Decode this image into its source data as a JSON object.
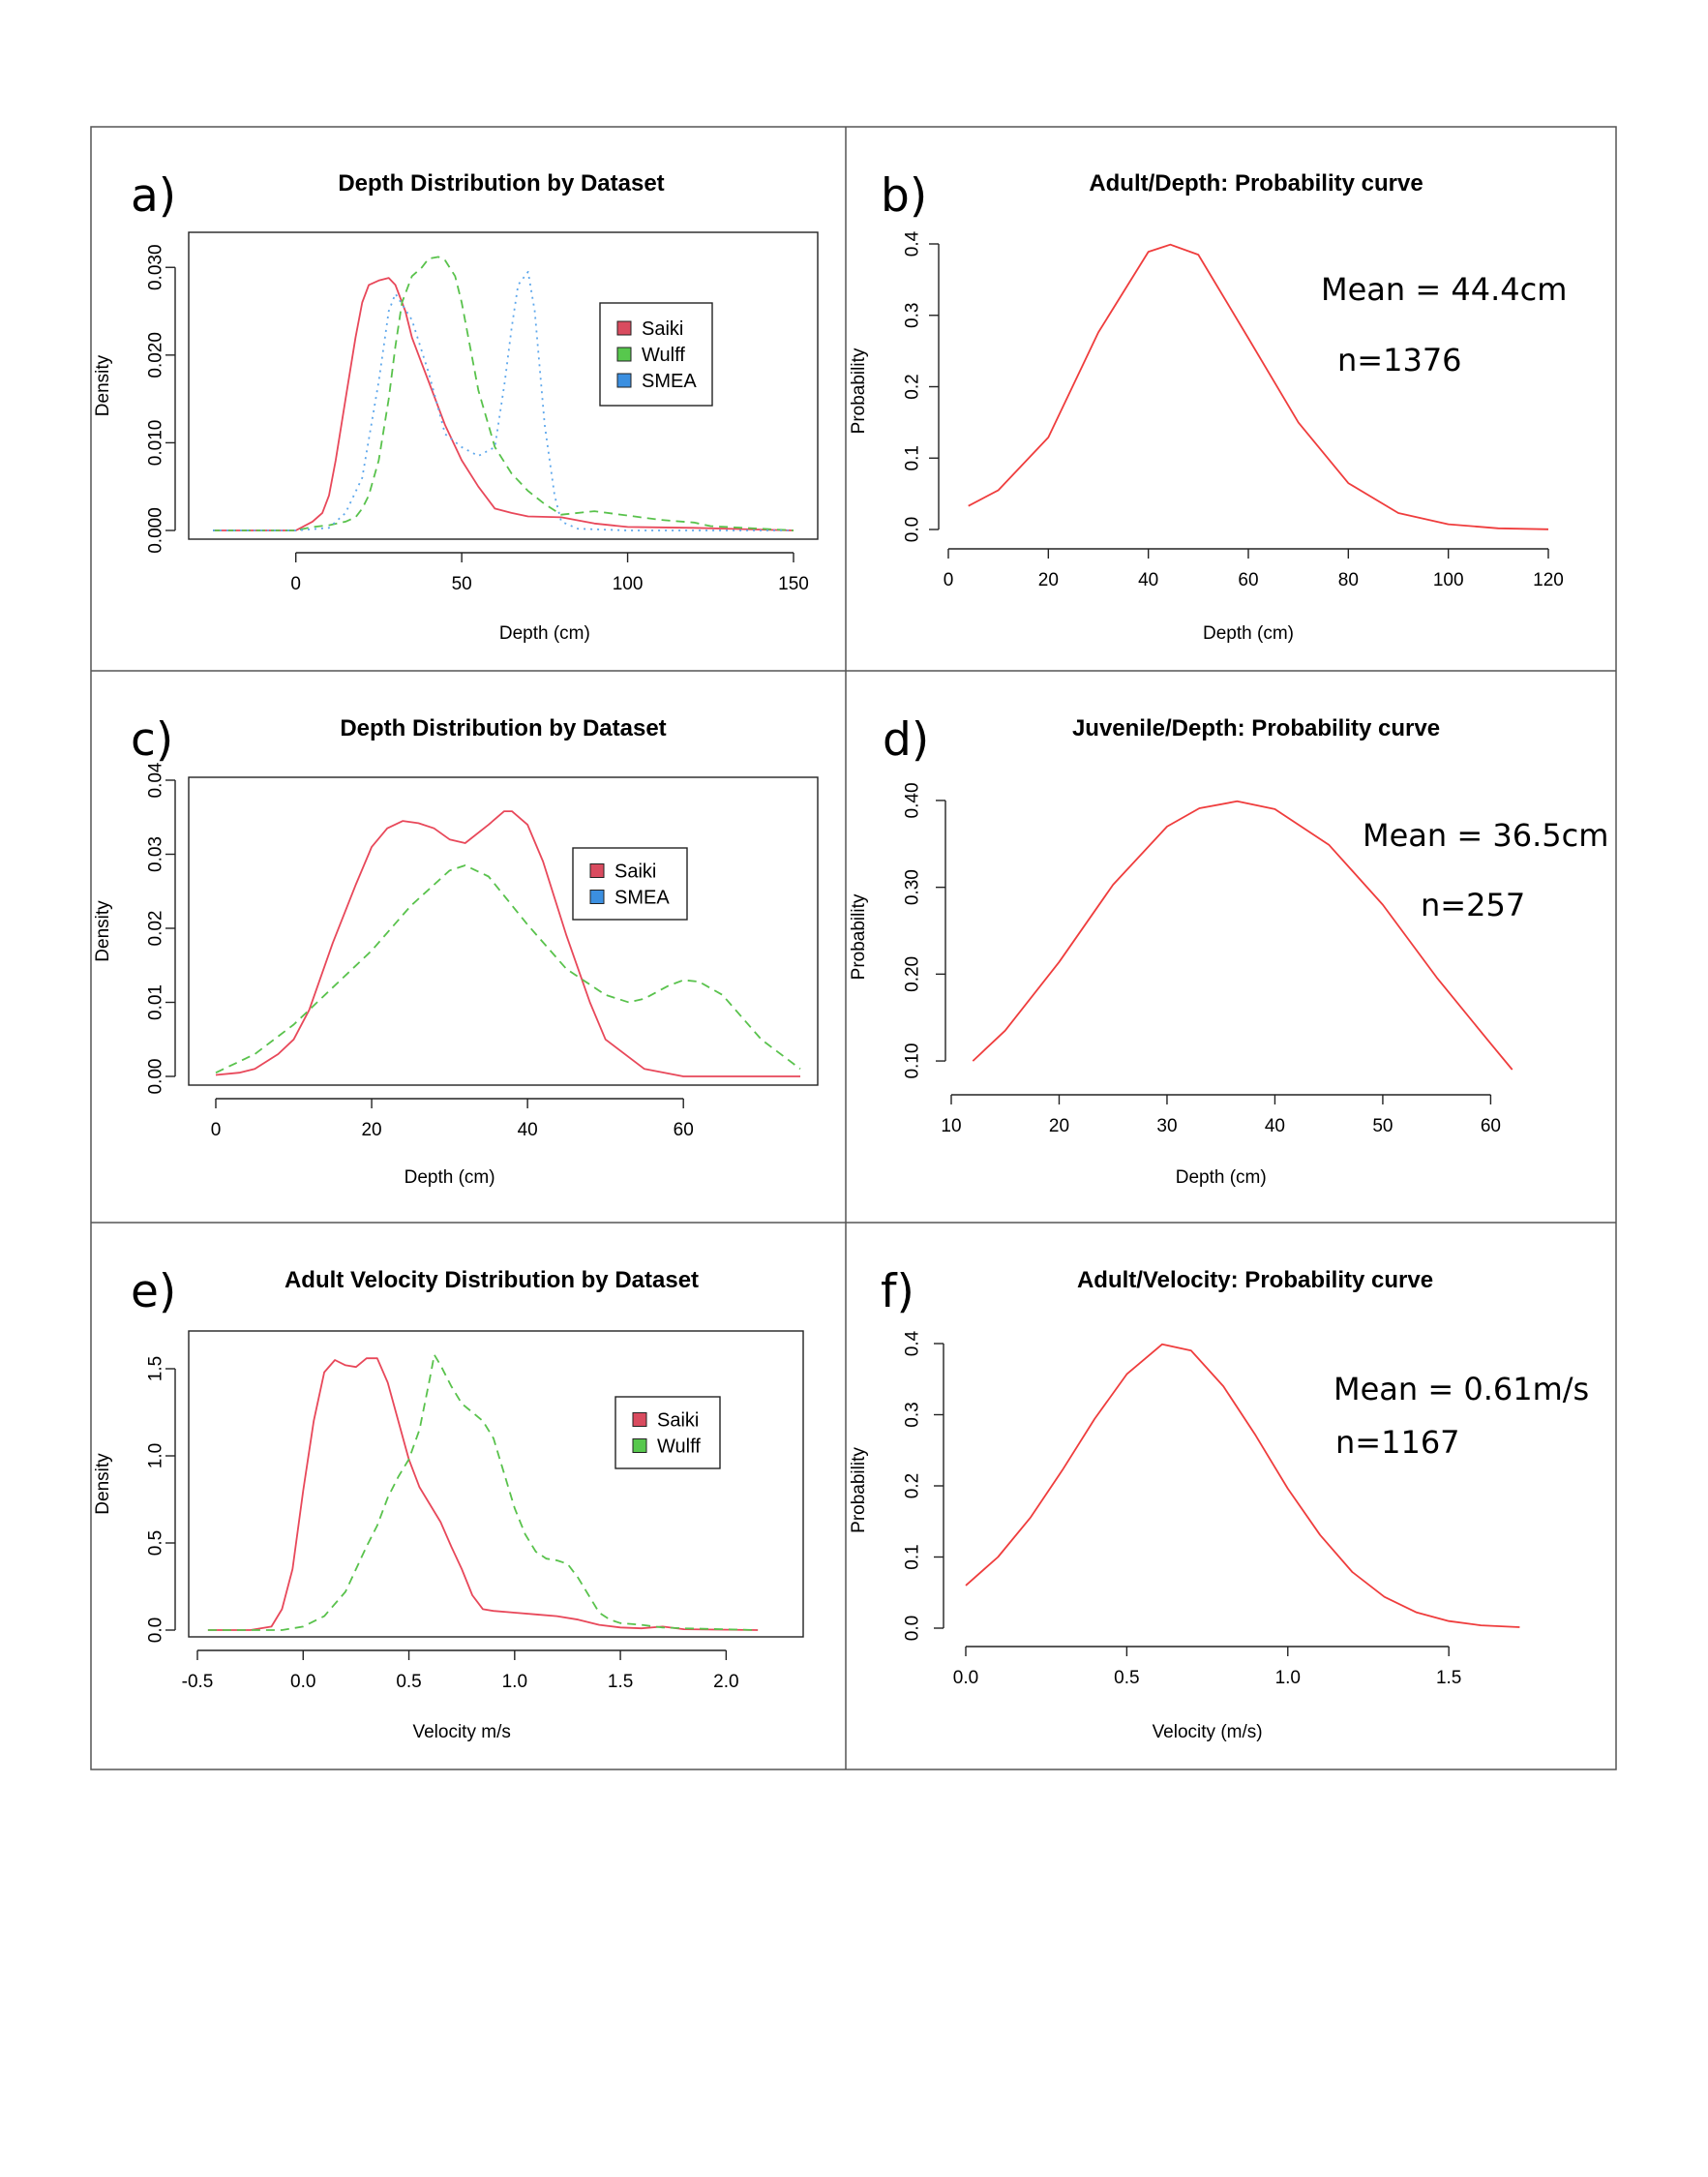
{
  "colors": {
    "saiki": "#e8485a",
    "wulff": "#59c24c",
    "smea": "#5fa8ec",
    "curve": "#ef3d3d",
    "legend_saiki": "#d94b5f",
    "legend_wulff": "#57c84d",
    "legend_smea": "#3b8fe0"
  },
  "panels": [
    {
      "letter": "a)",
      "title": "Depth Distribution by Dataset"
    },
    {
      "letter": "b)",
      "title": "Adult/Depth: Probability curve",
      "annotation_mean": "Mean = 44.4cm",
      "annotation_n": "n=1376"
    },
    {
      "letter": "c)",
      "title": "Depth Distribution by Dataset"
    },
    {
      "letter": "d)",
      "title": "Juvenile/Depth: Probability curve",
      "annotation_mean": "Mean = 36.5cm",
      "annotation_n": "n=257"
    },
    {
      "letter": "e)",
      "title": "Adult Velocity Distribution by Dataset"
    },
    {
      "letter": "f)",
      "title": "Adult/Velocity: Probability curve",
      "annotation_mean": "Mean = 0.61m/s",
      "annotation_n": "n=1167"
    }
  ],
  "chart_data": [
    {
      "type": "line",
      "title": "Depth Distribution by Dataset",
      "xlabel": "Depth (cm)",
      "ylabel": "Density",
      "xlim": [
        -25,
        150
      ],
      "ylim": [
        0,
        0.034
      ],
      "xticks": [
        0,
        50,
        100,
        150
      ],
      "yticks": [
        0.0,
        0.01,
        0.02,
        0.03
      ],
      "xtick_labels": [
        "0",
        "50",
        "100",
        "150"
      ],
      "ytick_labels": [
        "0.000",
        "0.010",
        "0.020",
        "0.030"
      ],
      "legend": "top-right",
      "series": [
        {
          "name": "Saiki",
          "style": "solid",
          "color": "saiki",
          "x": [
            -25,
            0,
            5,
            8,
            10,
            12,
            15,
            18,
            20,
            22,
            25,
            28,
            30,
            33,
            35,
            38,
            40,
            45,
            50,
            55,
            60,
            65,
            70,
            80,
            90,
            100,
            120,
            150
          ],
          "y": [
            0,
            0,
            0.001,
            0.002,
            0.004,
            0.008,
            0.015,
            0.022,
            0.026,
            0.028,
            0.0285,
            0.0288,
            0.028,
            0.025,
            0.022,
            0.019,
            0.017,
            0.012,
            0.008,
            0.005,
            0.0025,
            0.002,
            0.0016,
            0.0015,
            0.0008,
            0.0004,
            0.0003,
            0
          ]
        },
        {
          "name": "Wulff",
          "style": "dashed",
          "color": "wulff",
          "x": [
            -25,
            0,
            5,
            10,
            15,
            18,
            20,
            22,
            25,
            28,
            30,
            32,
            35,
            38,
            40,
            43,
            45,
            48,
            50,
            55,
            60,
            65,
            70,
            75,
            80,
            90,
            100,
            110,
            120,
            125,
            150
          ],
          "y": [
            0,
            0,
            0.0004,
            0.0006,
            0.001,
            0.0015,
            0.0025,
            0.004,
            0.008,
            0.015,
            0.021,
            0.026,
            0.029,
            0.03,
            0.031,
            0.0312,
            0.0308,
            0.029,
            0.026,
            0.016,
            0.0095,
            0.0065,
            0.0045,
            0.003,
            0.0018,
            0.0022,
            0.0017,
            0.0012,
            0.0009,
            0.0005,
            0
          ]
        },
        {
          "name": "SMEA",
          "style": "dotted",
          "color": "smea",
          "x": [
            -25,
            0,
            10,
            15,
            20,
            25,
            28,
            30,
            35,
            40,
            45,
            50,
            55,
            60,
            63,
            65,
            67,
            70,
            72,
            75,
            78,
            80,
            85,
            100,
            150
          ],
          "y": [
            0,
            0,
            0.0003,
            0.002,
            0.006,
            0.017,
            0.025,
            0.027,
            0.024,
            0.018,
            0.011,
            0.0095,
            0.0085,
            0.0095,
            0.017,
            0.023,
            0.028,
            0.0295,
            0.025,
            0.012,
            0.004,
            0.001,
            0.0002,
            0,
            0
          ]
        }
      ]
    },
    {
      "type": "line",
      "title": "Adult/Depth: Probability curve",
      "xlabel": "Depth (cm)",
      "ylabel": "Probability",
      "xlim": [
        0,
        120
      ],
      "ylim": [
        0,
        0.4
      ],
      "xticks": [
        0,
        20,
        40,
        60,
        80,
        100,
        120
      ],
      "yticks": [
        0.0,
        0.1,
        0.2,
        0.3,
        0.4
      ],
      "xtick_labels": [
        "0",
        "20",
        "40",
        "60",
        "80",
        "100",
        "120"
      ],
      "ytick_labels": [
        "0.0",
        "0.1",
        "0.2",
        "0.3",
        "0.4"
      ],
      "series": [
        {
          "color": "curve",
          "style": "solid",
          "x": [
            4,
            10,
            20,
            30,
            40,
            44.4,
            50,
            60,
            70,
            80,
            90,
            100,
            110,
            120
          ],
          "y": [
            0.033,
            0.055,
            0.129,
            0.276,
            0.389,
            0.399,
            0.385,
            0.268,
            0.15,
            0.065,
            0.023,
            0.0073,
            0.0016,
            0.0003
          ]
        }
      ]
    },
    {
      "type": "line",
      "title": "Depth Distribution by Dataset",
      "xlabel": "Depth (cm)",
      "ylabel": "Density",
      "xlim": [
        0,
        75
      ],
      "ylim": [
        0,
        0.04
      ],
      "xticks": [
        0,
        20,
        40,
        60
      ],
      "yticks": [
        0.0,
        0.01,
        0.02,
        0.03,
        0.04
      ],
      "xtick_labels": [
        "0",
        "20",
        "40",
        "60"
      ],
      "ytick_labels": [
        "0.00",
        "0.01",
        "0.02",
        "0.03",
        "0.04"
      ],
      "legend": "top-right",
      "series": [
        {
          "name": "Saiki",
          "style": "solid",
          "color": "saiki",
          "x": [
            0,
            3,
            5,
            8,
            10,
            12,
            15,
            18,
            20,
            22,
            24,
            26,
            28,
            30,
            32,
            35,
            37,
            38,
            40,
            42,
            45,
            48,
            50,
            55,
            60,
            65,
            75
          ],
          "y": [
            0.0002,
            0.0005,
            0.001,
            0.003,
            0.005,
            0.009,
            0.018,
            0.026,
            0.031,
            0.0335,
            0.0345,
            0.0342,
            0.0335,
            0.032,
            0.0315,
            0.034,
            0.0358,
            0.0358,
            0.034,
            0.029,
            0.019,
            0.01,
            0.005,
            0.001,
            0,
            0,
            0
          ]
        },
        {
          "name": "SMEA",
          "style": "dashed",
          "color": "wulff",
          "x": [
            0,
            5,
            10,
            15,
            20,
            25,
            30,
            32,
            35,
            40,
            45,
            50,
            53,
            55,
            58,
            60,
            62,
            65,
            70,
            75
          ],
          "y": [
            0.0005,
            0.003,
            0.007,
            0.012,
            0.017,
            0.023,
            0.0278,
            0.0285,
            0.027,
            0.0205,
            0.0145,
            0.011,
            0.01,
            0.0105,
            0.0122,
            0.013,
            0.0128,
            0.011,
            0.005,
            0.001
          ]
        }
      ]
    },
    {
      "type": "line",
      "title": "Juvenile/Depth: Probability curve",
      "xlabel": "Depth (cm)",
      "ylabel": "Probability",
      "xlim": [
        10,
        64
      ],
      "ylim": [
        0.08,
        0.42
      ],
      "xticks": [
        10,
        20,
        30,
        40,
        50,
        60
      ],
      "yticks": [
        0.1,
        0.2,
        0.3,
        0.4
      ],
      "xtick_labels": [
        "10",
        "20",
        "30",
        "40",
        "50",
        "60"
      ],
      "ytick_labels": [
        "0.10",
        "0.20",
        "0.30",
        "0.40"
      ],
      "series": [
        {
          "color": "curve",
          "style": "solid",
          "x": [
            12,
            15,
            20,
            25,
            30,
            33,
            36.5,
            40,
            45,
            50,
            55,
            60,
            62
          ],
          "y": [
            0.1,
            0.135,
            0.214,
            0.303,
            0.37,
            0.391,
            0.399,
            0.39,
            0.349,
            0.28,
            0.196,
            0.12,
            0.09
          ]
        }
      ]
    },
    {
      "type": "line",
      "title": "Adult Velocity Distribution by Dataset",
      "xlabel": "Velocity m/s",
      "ylabel": "Density",
      "xlim": [
        -0.5,
        2.25
      ],
      "ylim": [
        0,
        1.65
      ],
      "xticks": [
        -0.5,
        0.0,
        0.5,
        1.0,
        1.5,
        2.0
      ],
      "yticks": [
        0.0,
        0.5,
        1.0,
        1.5
      ],
      "xtick_labels": [
        "-0.5",
        "0.0",
        "0.5",
        "1.0",
        "1.5",
        "2.0"
      ],
      "ytick_labels": [
        "0.0",
        "0.5",
        "1.0",
        "1.5"
      ],
      "legend": "top-right",
      "series": [
        {
          "name": "Saiki",
          "style": "solid",
          "color": "saiki",
          "x": [
            -0.45,
            -0.25,
            -0.15,
            -0.1,
            -0.05,
            0.0,
            0.05,
            0.1,
            0.15,
            0.2,
            0.25,
            0.3,
            0.35,
            0.4,
            0.45,
            0.5,
            0.55,
            0.6,
            0.65,
            0.7,
            0.75,
            0.8,
            0.85,
            0.9,
            1.0,
            1.1,
            1.2,
            1.3,
            1.4,
            1.5,
            1.6,
            1.7,
            1.8,
            2.15
          ],
          "y": [
            0,
            0,
            0.02,
            0.12,
            0.35,
            0.8,
            1.2,
            1.48,
            1.55,
            1.52,
            1.51,
            1.56,
            1.56,
            1.42,
            1.2,
            0.98,
            0.82,
            0.72,
            0.62,
            0.48,
            0.35,
            0.2,
            0.12,
            0.11,
            0.1,
            0.09,
            0.08,
            0.06,
            0.03,
            0.015,
            0.01,
            0.02,
            0.005,
            0
          ]
        },
        {
          "name": "Wulff",
          "style": "dashed",
          "color": "wulff",
          "x": [
            -0.45,
            -0.1,
            0.0,
            0.1,
            0.2,
            0.3,
            0.35,
            0.4,
            0.45,
            0.5,
            0.55,
            0.6,
            0.62,
            0.65,
            0.7,
            0.75,
            0.8,
            0.85,
            0.9,
            0.95,
            1.0,
            1.05,
            1.1,
            1.15,
            1.2,
            1.25,
            1.3,
            1.35,
            1.4,
            1.45,
            1.5,
            1.6,
            1.7,
            1.8,
            2.15
          ],
          "y": [
            0,
            0,
            0.02,
            0.08,
            0.22,
            0.48,
            0.6,
            0.76,
            0.88,
            0.98,
            1.15,
            1.45,
            1.58,
            1.52,
            1.4,
            1.3,
            1.25,
            1.2,
            1.1,
            0.9,
            0.7,
            0.55,
            0.45,
            0.41,
            0.4,
            0.38,
            0.3,
            0.2,
            0.1,
            0.06,
            0.04,
            0.03,
            0.015,
            0.01,
            0
          ]
        }
      ]
    },
    {
      "type": "line",
      "title": "Adult/Velocity: Probability curve",
      "xlabel": "Velocity (m/s)",
      "ylabel": "Probability",
      "xlim": [
        0,
        1.8
      ],
      "ylim": [
        0,
        0.4
      ],
      "xticks": [
        0.0,
        0.5,
        1.0,
        1.5
      ],
      "yticks": [
        0.0,
        0.1,
        0.2,
        0.3,
        0.4
      ],
      "xtick_labels": [
        "0.0",
        "0.5",
        "1.0",
        "1.5"
      ],
      "ytick_labels": [
        "0.0",
        "0.1",
        "0.2",
        "0.3",
        "0.4"
      ],
      "series": [
        {
          "color": "curve",
          "style": "solid",
          "x": [
            0.0,
            0.1,
            0.2,
            0.3,
            0.4,
            0.5,
            0.61,
            0.7,
            0.8,
            0.9,
            1.0,
            1.1,
            1.2,
            1.3,
            1.4,
            1.5,
            1.6,
            1.72
          ],
          "y": [
            0.06,
            0.1,
            0.155,
            0.222,
            0.294,
            0.357,
            0.399,
            0.39,
            0.34,
            0.271,
            0.196,
            0.131,
            0.079,
            0.044,
            0.022,
            0.01,
            0.004,
            0.0013
          ]
        }
      ]
    }
  ]
}
